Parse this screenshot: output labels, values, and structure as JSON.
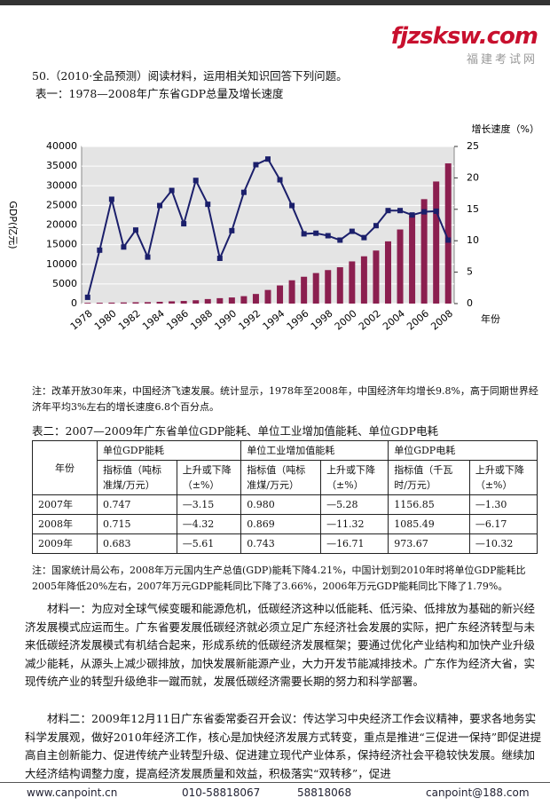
{
  "logo": {
    "site": "fjzsksw.com",
    "name": "福建考试网"
  },
  "question": "50.（2010·全品预测）阅读材料，运用相关知识回答下列问题。",
  "table1_title": "表一：1978—2008年广东省GDP总量及增长速度",
  "chart_data": {
    "type": "bar",
    "y_label": "GDP(亿元)",
    "y2_label": "增长速度（%）",
    "x_label": "年份",
    "categories": [
      "1978",
      null,
      "1980",
      null,
      "1982",
      null,
      "1984",
      null,
      "1986",
      null,
      "1988",
      null,
      "1990",
      null,
      "1992",
      null,
      "1994",
      null,
      "1996",
      null,
      "1998",
      null,
      "2000",
      null,
      "2002",
      null,
      "2004",
      null,
      "2006",
      null,
      "2008"
    ],
    "series": [
      {
        "name": "GDP",
        "color": "#8b1f4f",
        "values": [
          186,
          209,
          250,
          291,
          340,
          369,
          459,
          577,
          668,
          847,
          1155,
          1381,
          1559,
          1893,
          2448,
          3469,
          4619,
          5934,
          6835,
          7775,
          8531,
          9251,
          10741,
          12039,
          13502,
          15845,
          18865,
          22557,
          26588,
          31084,
          35696
        ]
      },
      {
        "name": "增长速度",
        "type": "line",
        "axis": "y2",
        "color": "#1b1f6b",
        "values": [
          1,
          8.5,
          16.6,
          9,
          11.7,
          7.4,
          15.6,
          18,
          12.7,
          19.6,
          15.8,
          7.2,
          11.6,
          17.7,
          22.1,
          23,
          19.7,
          15.6,
          11.1,
          11.2,
          10.8,
          10.1,
          11.5,
          10.5,
          12.4,
          14.8,
          14.8,
          14.1,
          14.6,
          14.7,
          10.1
        ]
      }
    ],
    "ylim": [
      0,
      40000
    ],
    "yticks": [
      0,
      5000,
      10000,
      15000,
      20000,
      25000,
      30000,
      35000,
      40000
    ],
    "y2lim": [
      0,
      25
    ],
    "y2ticks": [
      0,
      5,
      10,
      15,
      20,
      25
    ],
    "grid": true
  },
  "note1": "注：改革开放30年来，中国经济飞速发展。统计显示，1978年至2008年，中国经济年均增长9.8%，高于同期世界经济年平均3%左右的增长速度6.8个百分点。",
  "table2_title": "表二：2007—2009年广东省单位GDP能耗、单位工业增加值能耗、单位GDP电耗",
  "table": {
    "year_header": "年份",
    "groups": [
      "单位GDP能耗",
      "单位工业增加值能耗",
      "单位GDP电耗"
    ],
    "subheaders": [
      "指标值（吨标准煤/万元）",
      "上升或下降（±%）",
      "指标值（吨标准煤/万元）",
      "上升或下降（±%）",
      "指标值（千瓦时/万元）",
      "上升或下降（±%）"
    ],
    "rows": [
      [
        "2007年",
        "0.747",
        "—3.15",
        "0.980",
        "—5.28",
        "1156.85",
        "—1.30"
      ],
      [
        "2008年",
        "0.715",
        "—4.32",
        "0.869",
        "—11.32",
        "1085.49",
        "—6.17"
      ],
      [
        "2009年",
        "0.683",
        "—5.61",
        "0.743",
        "—16.71",
        "973.67",
        "—10.32"
      ]
    ]
  },
  "note2": "注：国家统计局公布，2008年万元国内生产总值(GDP)能耗下降4.21%，中国计划到2010年时将单位GDP能耗比2005年降低20%左右，2007年万元GDP能耗同比下降了3.66%，2006年万元GDP能耗同比下降了1.79%。",
  "material1": "材料一：为应对全球气候变暖和能源危机，低碳经济这种以低能耗、低污染、低排放为基础的新兴经济发展模式应运而生。广东省要发展低碳经济就必须立足广东经济社会发展的实际，把广东经济转型与未来低碳经济发展模式有机结合起来，形成系统的低碳经济发展框架；要通过优化产业结构和加快产业升级减少能耗，从源头上减少碳排放，加快发展新能源产业，大力开发节能减排技术。广东作为经济大省，实现传统产业的转型升级绝非一蹴而就，发展低碳经济需要长期的努力和科学部署。",
  "material2": "材料二：2009年12月11日广东省委常委召开会议：传达学习中央经济工作会议精神，要求各地务实科学发展观，做好2010年经济工作，核心是加快经济发展方式转变，重点是推进“三促进一保持”即促进提高自主创新能力、促进传统产业转型升级、促进建立现代产业体系，保持经济社会平稳较快发展。继续加大经济结构调整力度，提高经济发展质量和效益，积极落实“双转移”，促进",
  "footer": [
    "www.canpoint.cn",
    "010-58818067",
    "58818068",
    "canpoint@188.com"
  ]
}
